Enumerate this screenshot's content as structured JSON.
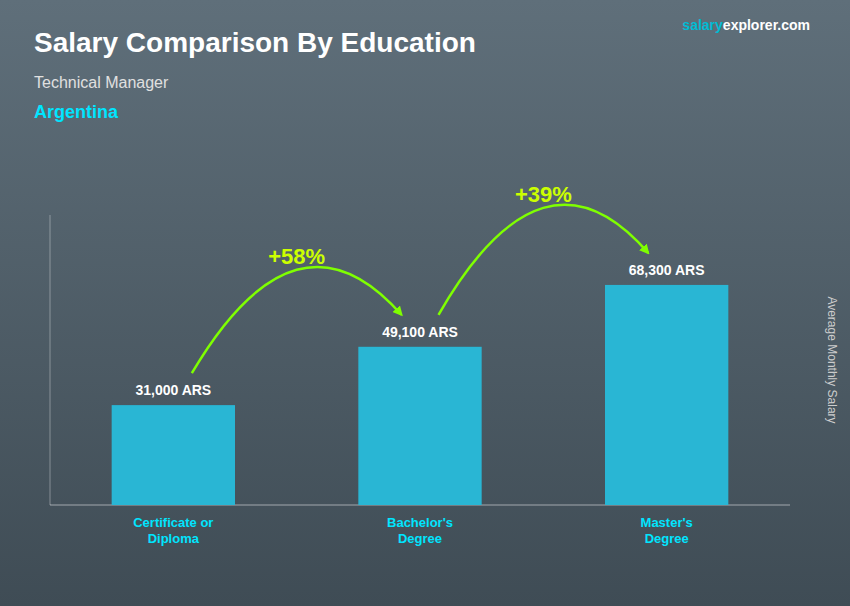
{
  "chart_data": {
    "type": "bar",
    "title": "Salary Comparison By Education",
    "subtitle": [
      "Technical Manager",
      "Argentina"
    ],
    "watermark": [
      "salary",
      "explorer.com"
    ],
    "ylabel": "Average Monthly Salary",
    "categories": [
      "Certificate or\nDiploma",
      "Bachelor's\nDegree",
      "Master's\nDegree"
    ],
    "values": [
      31000,
      49100,
      68300
    ],
    "value_labels": [
      "31,000 ARS",
      "49,100 ARS",
      "68,300 ARS"
    ],
    "data_labels": true,
    "annotations": [
      "+58%",
      "+39%"
    ],
    "color": "#29b6d4",
    "ylim": [
      0,
      90000
    ],
    "grid": false,
    "tick_labels": "x"
  }
}
